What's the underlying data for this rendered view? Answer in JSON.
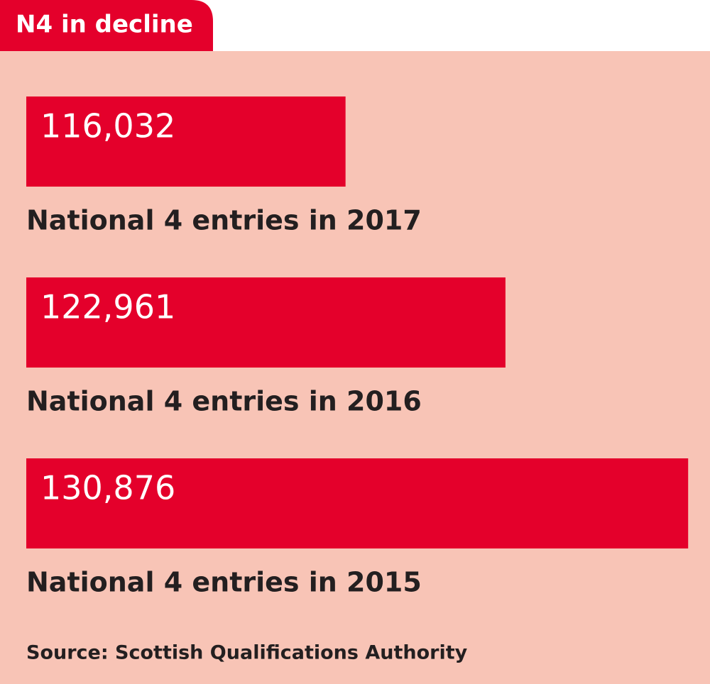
{
  "chart_data": {
    "type": "hbar",
    "title": "N4 in decline",
    "categories": [
      "National 4 entries in 2017",
      "National 4 entries in 2016",
      "National 4 entries in 2015"
    ],
    "values": [
      116032,
      122961,
      130876
    ],
    "value_labels": [
      "116,032",
      "122,961",
      "130,876"
    ],
    "color": "#e4002b",
    "xlim": [
      102200,
      130900
    ],
    "source": "Source: Scottish Qualifications Authority"
  }
}
